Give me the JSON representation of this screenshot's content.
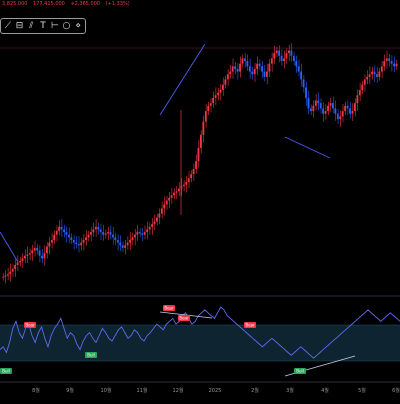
{
  "ohlc": {
    "values": [
      "3,825.000",
      "177,415.000",
      "+2,365.000",
      "(+1.33%)"
    ],
    "color": "#f23645"
  },
  "toolbar": {
    "tools": [
      {
        "icon": "line-tool-icon",
        "glyph": "⟋"
      },
      {
        "icon": "ruler-icon",
        "glyph": "⊟"
      },
      {
        "icon": "parallel-channel-icon",
        "glyph": "⫽"
      },
      {
        "icon": "text-tool-icon",
        "glyph": "T"
      },
      {
        "icon": "info-line-icon",
        "glyph": "⊢"
      },
      {
        "icon": "circle-icon",
        "glyph": "○"
      },
      {
        "icon": "chevron-icon",
        "glyph": "⋄"
      }
    ]
  },
  "colors": {
    "background": "#000000",
    "candle_up": "#f23645",
    "candle_down": "#2962ff",
    "rsi_line": "#5b6cf0",
    "trendline": "#4c5cf5",
    "bear_label": "#f23645",
    "bull_label": "#26a65b",
    "band": "#0e2430",
    "resistance": "#ffffff"
  },
  "x_axis": {
    "labels": [
      "8월",
      "9월",
      "10월",
      "11월",
      "12월",
      "2025",
      "2월",
      "3월",
      "4월",
      "5월",
      "6월"
    ]
  },
  "divergence_labels": {
    "bear": "Bear",
    "bull": "Bull"
  },
  "chart_data": {
    "type": "candlestick",
    "price": {
      "closes": [
        0.3,
        0.31,
        0.32,
        0.34,
        0.36,
        0.39,
        0.41,
        0.42,
        0.44,
        0.46,
        0.47,
        0.48,
        0.5,
        0.52,
        0.5,
        0.46,
        0.44,
        0.48,
        0.53,
        0.56,
        0.58,
        0.62,
        0.65,
        0.68,
        0.66,
        0.64,
        0.62,
        0.6,
        0.58,
        0.56,
        0.55,
        0.54,
        0.56,
        0.58,
        0.6,
        0.62,
        0.64,
        0.66,
        0.68,
        0.66,
        0.64,
        0.62,
        0.63,
        0.64,
        0.62,
        0.6,
        0.58,
        0.56,
        0.54,
        0.52,
        0.54,
        0.56,
        0.58,
        0.6,
        0.62,
        0.64,
        0.63,
        0.62,
        0.64,
        0.66,
        0.68,
        0.7,
        0.72,
        0.75,
        0.78,
        0.82,
        0.85,
        0.88,
        0.9,
        0.92,
        0.94,
        0.95,
        0.97,
        0.99,
        1.0,
        1.02,
        1.05,
        1.08,
        1.12,
        1.18,
        1.28,
        1.38,
        1.48,
        1.56,
        1.6,
        1.62,
        1.66,
        1.68,
        1.7,
        1.72,
        1.76,
        1.8,
        1.84,
        1.86,
        1.9,
        1.88,
        1.86,
        1.92,
        1.96,
        1.94,
        1.9,
        1.86,
        1.84,
        1.88,
        1.92,
        1.9,
        1.86,
        1.82,
        1.86,
        1.92,
        1.96,
        2.0,
        2.02,
        1.98,
        1.94,
        1.96,
        2.0,
        2.02,
        1.98,
        1.94,
        1.9,
        1.86,
        1.8,
        1.74,
        1.66,
        1.58,
        1.56,
        1.6,
        1.64,
        1.62,
        1.58,
        1.54,
        1.56,
        1.6,
        1.62,
        1.58,
        1.54,
        1.5,
        1.52,
        1.56,
        1.6,
        1.58,
        1.54,
        1.56,
        1.62,
        1.68,
        1.72,
        1.76,
        1.8,
        1.82,
        1.84,
        1.86,
        1.84,
        1.82,
        1.86,
        1.9,
        1.94,
        1.96,
        1.94,
        1.92,
        1.9,
        1.92
      ],
      "note": "normalized"
    },
    "rsi": {
      "values": [
        40,
        42,
        38,
        45,
        55,
        60,
        52,
        48,
        55,
        58,
        50,
        45,
        52,
        56,
        48,
        42,
        50,
        55,
        58,
        62,
        55,
        48,
        52,
        50,
        44,
        40,
        46,
        50,
        52,
        48,
        45,
        50,
        55,
        52,
        48,
        46,
        50,
        54,
        56,
        52,
        48,
        50,
        54,
        52,
        48,
        46,
        50,
        52,
        55,
        58,
        56,
        54,
        58,
        60,
        62,
        58,
        60,
        64,
        66,
        62,
        58,
        60,
        64,
        66,
        68,
        66,
        64,
        62,
        66,
        70,
        68,
        64,
        62,
        60,
        58,
        56,
        54,
        52,
        50,
        48,
        46,
        44,
        42,
        44,
        46,
        48,
        46,
        44,
        42,
        40,
        38,
        36,
        38,
        40,
        42,
        40,
        38,
        36,
        34,
        36,
        38,
        40,
        42,
        44,
        46,
        48,
        50,
        52,
        54,
        56,
        58,
        60,
        62,
        64,
        66,
        68,
        66,
        64,
        62,
        60,
        62,
        64,
        66,
        64,
        62,
        60
      ],
      "upper": 70,
      "lower": 30
    }
  }
}
